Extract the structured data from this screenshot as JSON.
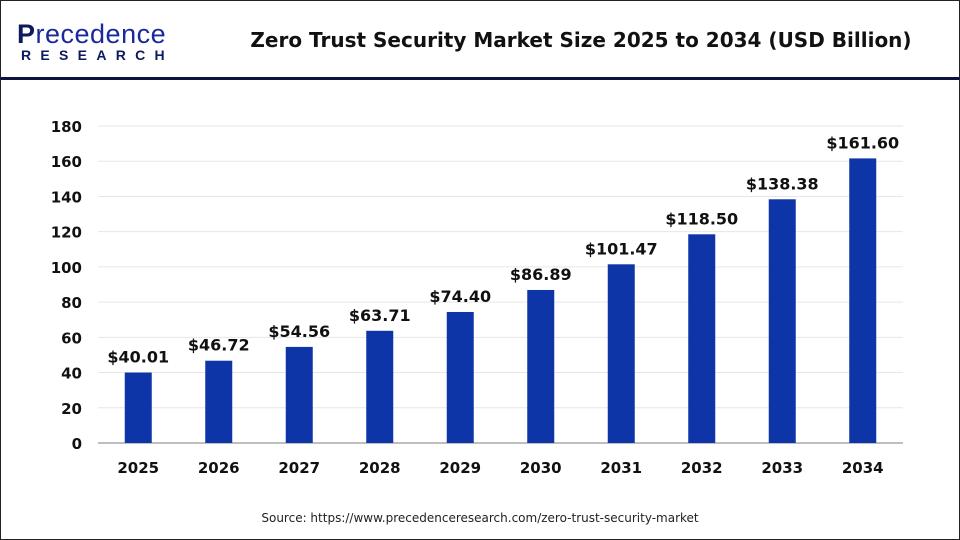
{
  "logo": {
    "line1_first": "P",
    "line1_rest": "recedence",
    "line2": "RESEARCH"
  },
  "title": "Zero Trust Security Market Size 2025 to 2034 (USD Billion)",
  "source": "Source:  https://www.precedenceresearch.com/zero-trust-security-market",
  "colors": {
    "bar": "#0e35a8",
    "header_rule": "#0d1440",
    "grid": "#e6e6e6",
    "axis": "#bfbfbf"
  },
  "chart_data": {
    "type": "bar",
    "title": "Zero Trust Security Market Size 2025 to 2034 (USD Billion)",
    "categories": [
      "2025",
      "2026",
      "2027",
      "2028",
      "2029",
      "2030",
      "2031",
      "2032",
      "2033",
      "2034"
    ],
    "values": [
      40.01,
      46.72,
      54.56,
      63.71,
      74.4,
      86.89,
      101.47,
      118.5,
      138.38,
      161.6
    ],
    "data_labels": [
      "$40.01",
      "$46.72",
      "$54.56",
      "$63.71",
      "$74.40",
      "$86.89",
      "$101.47",
      "$118.50",
      "$138.38",
      "$161.60"
    ],
    "yticks": [
      0,
      20,
      40,
      60,
      80,
      100,
      120,
      140,
      160,
      180
    ],
    "ylim": [
      0,
      180
    ],
    "grid": true,
    "xlabel": "",
    "ylabel": ""
  }
}
